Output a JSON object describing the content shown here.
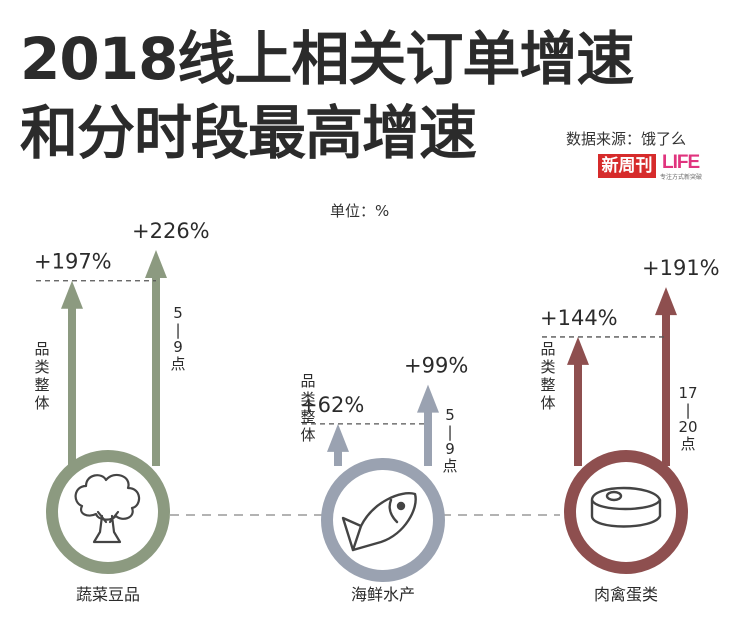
{
  "header": {
    "title_line1": "2018线上相关订单增速",
    "title_line2": "和分时段最高增速",
    "source": "数据来源：饿了么",
    "unit": "单位：%",
    "logo_xinzhoukan": "新周刊",
    "logo_life": "LIFE",
    "logo_life_sub": "专注方式新突破"
  },
  "chart_data": {
    "type": "bar",
    "title": "2018线上相关订单增速 和分时段最高增速",
    "unit": "单位：%",
    "categories": [
      "蔬菜豆品",
      "海鲜水产",
      "肉禽蛋类"
    ],
    "series": [
      {
        "name": "品类整体",
        "values": [
          197,
          62,
          144
        ],
        "labels": [
          "+197%",
          "+62%",
          "+144%"
        ]
      },
      {
        "name": "分时段最高",
        "values": [
          226,
          99,
          191
        ],
        "labels": [
          "+226%",
          "+99%",
          "+191%"
        ],
        "time_labels": [
          "5|9点",
          "5|9点",
          "17|20点"
        ]
      }
    ],
    "overall_label": "品类整体",
    "icons": [
      "broccoli-icon",
      "fish-icon",
      "steak-icon"
    ],
    "colors": [
      "#8c9a80",
      "#9aa2b1",
      "#8e4f4f"
    ]
  }
}
